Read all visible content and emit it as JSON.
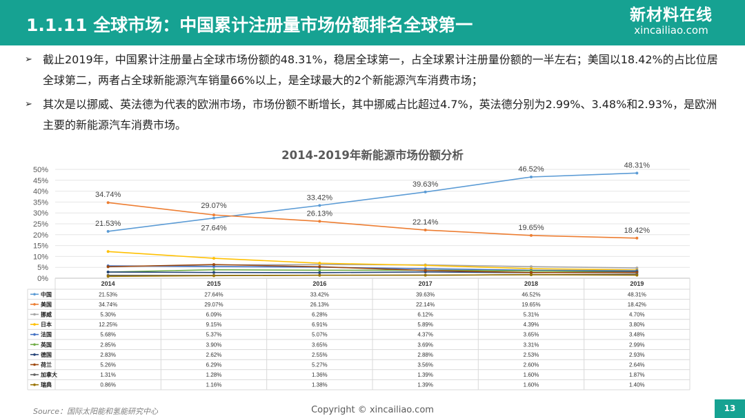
{
  "header": {
    "title": "1.1.11 全球市场：中国累计注册量市场份额排名全球第一",
    "logo_cn": "新材料在线",
    "logo_en": "xincailiao.com"
  },
  "bullets": [
    "截止2019年，中国累计注册量占全球市场份额的48.31%，稳居全球第一，占全球累计注册量份额的一半左右；美国以18.42%的占比位居全球第二，两者占全球新能源汽车销量66%以上，是全球最大的2个新能源汽车消费市场；",
    "其次是以挪威、英法德为代表的欧洲市场，市场份额不断增长，其中挪威占比超过4.7%，英法德分别为2.99%、3.48%和2.93%，是欧洲主要的新能源汽车消费市场。"
  ],
  "bullet_marker": "➢",
  "footer": {
    "source": "Source：国际太阳能和氢能研究中心",
    "copyright": "Copyright © xincailiao.com",
    "page": "13"
  },
  "chart_data": {
    "type": "line",
    "title": "2014-2019年新能源市场份额分析",
    "categories": [
      "2014",
      "2015",
      "2016",
      "2017",
      "2018",
      "2019"
    ],
    "yticks": [
      "0%",
      "5%",
      "10%",
      "15%",
      "20%",
      "25%",
      "30%",
      "35%",
      "40%",
      "45%",
      "50%"
    ],
    "ylim": [
      0,
      50
    ],
    "legend": "data-table",
    "series": [
      {
        "name": "中国",
        "color": "#5b9bd5",
        "values": [
          21.53,
          27.64,
          33.42,
          39.63,
          46.52,
          48.31
        ],
        "labels": [
          "21.53%",
          "27.64%",
          "33.42%",
          "39.63%",
          "46.52%",
          "48.31%"
        ],
        "show_labels": true
      },
      {
        "name": "美国",
        "color": "#ed7d31",
        "values": [
          34.74,
          29.07,
          26.13,
          22.14,
          19.65,
          18.42
        ],
        "labels": [
          "34.74%",
          "29.07%",
          "26.13%",
          "22.14%",
          "19.65%",
          "18.42%"
        ],
        "show_labels": true
      },
      {
        "name": "挪威",
        "color": "#a5a5a5",
        "values": [
          5.3,
          6.09,
          6.28,
          6.12,
          5.31,
          4.7
        ],
        "labels": [
          "5.30%",
          "6.09%",
          "6.28%",
          "6.12%",
          "5.31%",
          "4.70%"
        ]
      },
      {
        "name": "日本",
        "color": "#ffc000",
        "values": [
          12.25,
          9.15,
          6.91,
          5.89,
          4.39,
          3.8
        ],
        "labels": [
          "12.25%",
          "9.15%",
          "6.91%",
          "5.89%",
          "4.39%",
          "3.80%"
        ]
      },
      {
        "name": "法国",
        "color": "#4472c4",
        "values": [
          5.68,
          5.37,
          5.07,
          4.37,
          3.65,
          3.48
        ],
        "labels": [
          "5.68%",
          "5.37%",
          "5.07%",
          "4.37%",
          "3.65%",
          "3.48%"
        ]
      },
      {
        "name": "英国",
        "color": "#70ad47",
        "values": [
          2.85,
          3.9,
          3.65,
          3.69,
          3.31,
          2.99
        ],
        "labels": [
          "2.85%",
          "3.90%",
          "3.65%",
          "3.69%",
          "3.31%",
          "2.99%"
        ]
      },
      {
        "name": "德国",
        "color": "#264478",
        "values": [
          2.83,
          2.62,
          2.55,
          2.88,
          2.53,
          2.93
        ],
        "labels": [
          "2.83%",
          "2.62%",
          "2.55%",
          "2.88%",
          "2.53%",
          "2.93%"
        ]
      },
      {
        "name": "荷兰",
        "color": "#9e480e",
        "values": [
          5.26,
          6.29,
          5.27,
          3.56,
          2.6,
          2.64
        ],
        "labels": [
          "5.26%",
          "6.29%",
          "5.27%",
          "3.56%",
          "2.60%",
          "2.64%"
        ]
      },
      {
        "name": "加拿大",
        "color": "#636363",
        "values": [
          1.31,
          1.28,
          1.36,
          1.39,
          1.6,
          1.87
        ],
        "labels": [
          "1.31%",
          "1.28%",
          "1.36%",
          "1.39%",
          "1.60%",
          "1.87%"
        ]
      },
      {
        "name": "瑞典",
        "color": "#997300",
        "values": [
          0.86,
          1.16,
          1.38,
          1.39,
          1.6,
          1.4
        ],
        "labels": [
          "0.86%",
          "1.16%",
          "1.38%",
          "1.39%",
          "1.60%",
          "1.40%"
        ]
      }
    ]
  }
}
